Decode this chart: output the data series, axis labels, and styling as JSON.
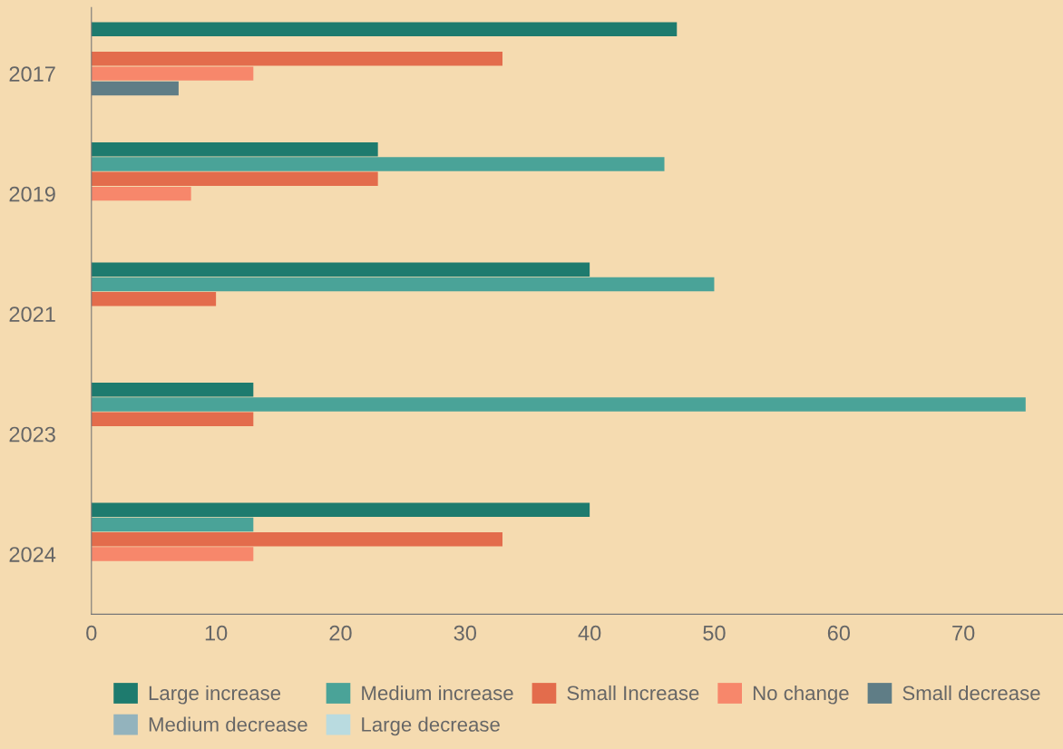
{
  "chart_data": {
    "type": "bar",
    "orientation": "horizontal",
    "categories": [
      "2017",
      "2019",
      "2021",
      "2023",
      "2024"
    ],
    "series": [
      {
        "name": "Large increase",
        "color": "#1e7b6e",
        "values": [
          47,
          23,
          40,
          13,
          40
        ]
      },
      {
        "name": "Medium increase",
        "color": "#4aa398",
        "values": [
          null,
          46,
          50,
          75,
          13
        ]
      },
      {
        "name": "Small Increase",
        "color": "#e36c4c",
        "values": [
          33,
          23,
          10,
          13,
          33
        ]
      },
      {
        "name": "No change",
        "color": "#f7876b",
        "values": [
          13,
          8,
          null,
          null,
          13
        ]
      },
      {
        "name": "Small decrease",
        "color": "#5f7d86",
        "values": [
          7,
          null,
          null,
          null,
          null
        ]
      },
      {
        "name": "Medium decrease",
        "color": "#93b3bd",
        "values": [
          null,
          null,
          null,
          null,
          null
        ]
      },
      {
        "name": "Large decrease",
        "color": "#b9dbe0",
        "values": [
          null,
          null,
          null,
          null,
          null
        ]
      }
    ],
    "xlim": [
      0,
      78
    ],
    "xticks": [
      0,
      10,
      20,
      30,
      40,
      50,
      60,
      70
    ],
    "grid": false,
    "legend": "bottom"
  }
}
